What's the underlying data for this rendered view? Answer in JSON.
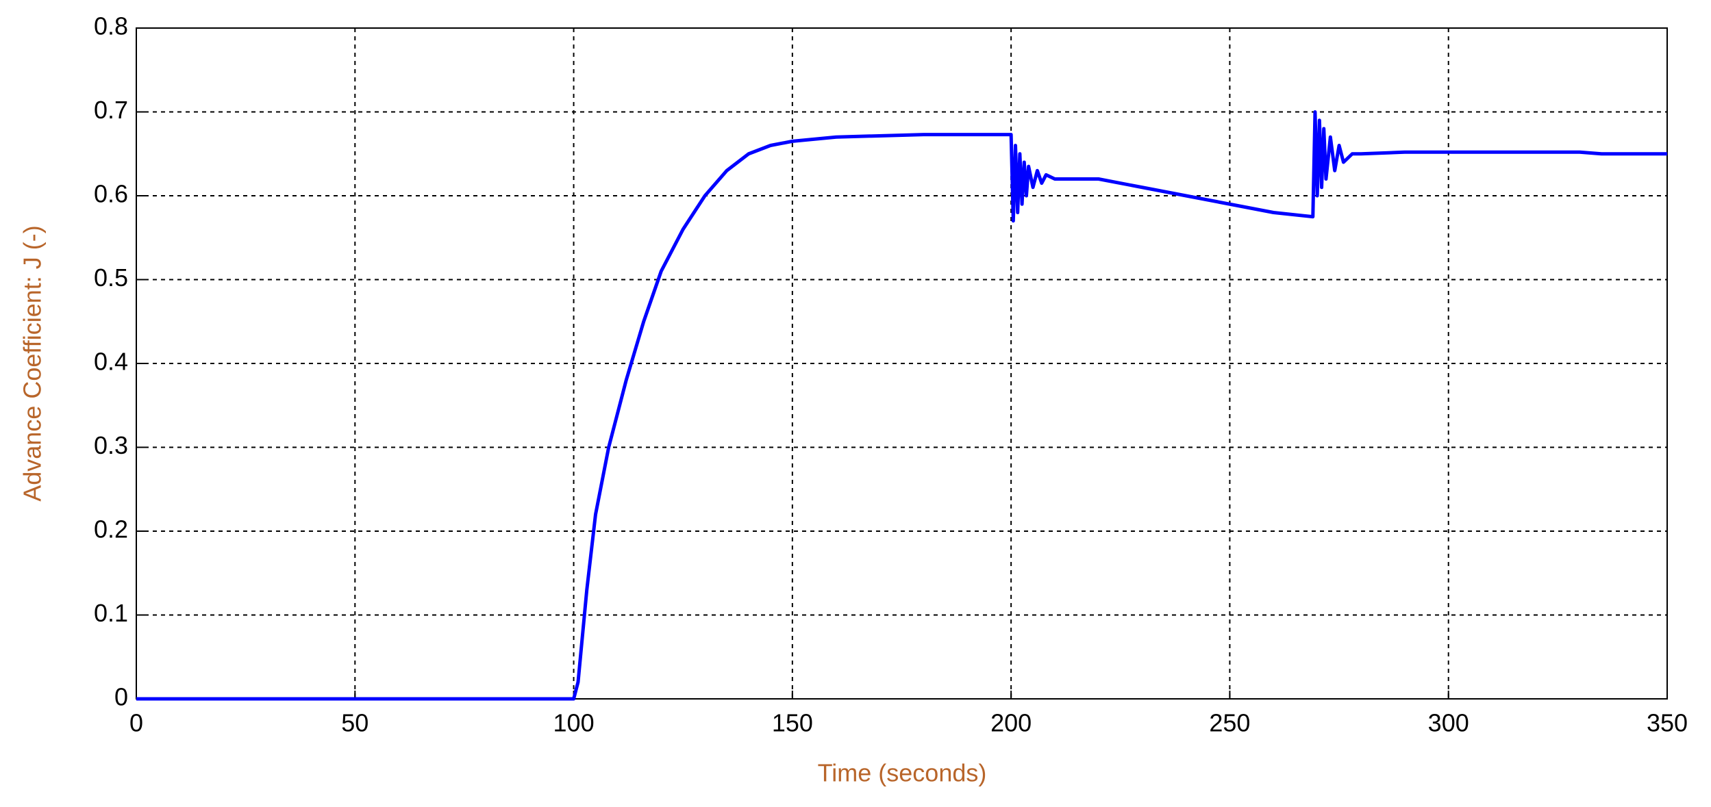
{
  "chart_data": {
    "type": "line",
    "x_label": "Time (seconds)",
    "y_label": "Advance Coefficient: J (-)",
    "x": [
      0,
      100,
      101,
      103,
      105,
      108,
      112,
      116,
      120,
      125,
      130,
      135,
      140,
      145,
      150,
      160,
      180,
      200,
      200.5,
      201,
      201.5,
      202,
      202.5,
      203,
      203.5,
      204,
      205,
      206,
      207,
      208,
      210,
      220,
      230,
      240,
      250,
      260,
      269,
      269.5,
      270,
      270.5,
      271,
      271.5,
      272,
      273,
      274,
      275,
      276,
      278,
      280,
      290,
      300,
      330,
      335,
      350
    ],
    "series": [
      {
        "color": "#0000ff",
        "values": [
          0,
          0,
          0.02,
          0.13,
          0.22,
          0.3,
          0.38,
          0.45,
          0.51,
          0.56,
          0.6,
          0.63,
          0.65,
          0.66,
          0.665,
          0.67,
          0.673,
          0.673,
          0.57,
          0.66,
          0.58,
          0.65,
          0.59,
          0.64,
          0.6,
          0.635,
          0.61,
          0.63,
          0.615,
          0.625,
          0.62,
          0.62,
          0.61,
          0.6,
          0.59,
          0.58,
          0.575,
          0.7,
          0.6,
          0.69,
          0.61,
          0.68,
          0.62,
          0.67,
          0.63,
          0.66,
          0.64,
          0.65,
          0.65,
          0.652,
          0.652,
          0.652,
          0.65,
          0.65
        ]
      }
    ],
    "xlim": [
      0,
      350
    ],
    "xticks": [
      0,
      50,
      100,
      150,
      200,
      250,
      300,
      350
    ],
    "ylim": [
      0,
      0.8
    ],
    "yticks": [
      0,
      0.1,
      0.2,
      0.3,
      0.4,
      0.5,
      0.6,
      0.7,
      0.8
    ],
    "grid": true
  }
}
